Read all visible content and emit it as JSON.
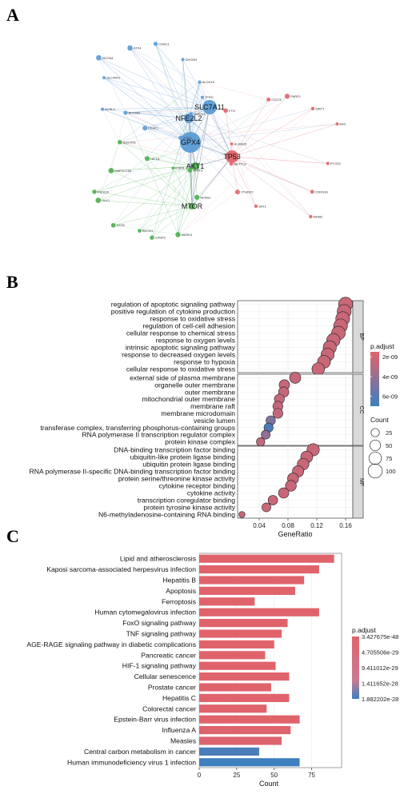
{
  "panels": {
    "a": "A",
    "b": "B",
    "c": "C"
  },
  "network": {
    "hubs": [
      {
        "label": "GPX4",
        "group": "blue",
        "size": 13
      },
      {
        "label": "SLC7A11",
        "group": "blue",
        "size": 9
      },
      {
        "label": "NFE2L2",
        "group": "blue",
        "size": 6
      },
      {
        "label": "TP53",
        "group": "red",
        "size": 8
      },
      {
        "label": "AKT1",
        "group": "green",
        "size": 5
      },
      {
        "label": "MTOR",
        "group": "green",
        "size": 4
      }
    ],
    "nodes": [
      {
        "label": "TFRC",
        "group": "blue"
      },
      {
        "label": "HMOX1",
        "group": "blue"
      },
      {
        "label": "FTH1",
        "group": "blue"
      },
      {
        "label": "KEAP1",
        "group": "blue"
      },
      {
        "label": "SLC3A2",
        "group": "blue"
      },
      {
        "label": "ACSL4",
        "group": "blue"
      },
      {
        "label": "SLC40A1",
        "group": "blue"
      },
      {
        "label": "NCOA4",
        "group": "blue"
      },
      {
        "label": "ATF4",
        "group": "blue"
      },
      {
        "label": "CHAC1",
        "group": "blue"
      },
      {
        "label": "DHODH",
        "group": "blue"
      },
      {
        "label": "ALOX15",
        "group": "blue"
      },
      {
        "label": "PTGS2",
        "group": "red"
      },
      {
        "label": "CDKN1A",
        "group": "red"
      },
      {
        "label": "MDM2",
        "group": "red"
      },
      {
        "label": "SAT1",
        "group": "red"
      },
      {
        "label": "YTHDF2",
        "group": "red"
      },
      {
        "label": "METTL3",
        "group": "red"
      },
      {
        "label": "ALKBH5",
        "group": "red"
      },
      {
        "label": "FTO",
        "group": "red"
      },
      {
        "label": "CD274",
        "group": "red"
      },
      {
        "label": "PARP1",
        "group": "red"
      },
      {
        "label": "SIRT1",
        "group": "red"
      },
      {
        "label": "BAX",
        "group": "red"
      },
      {
        "label": "NFKB1",
        "group": "green"
      },
      {
        "label": "MAPK3",
        "group": "green"
      },
      {
        "label": "CASP3",
        "group": "green"
      },
      {
        "label": "BECN1",
        "group": "green"
      },
      {
        "label": "ATG5",
        "group": "green"
      },
      {
        "label": "ULK1",
        "group": "green"
      },
      {
        "label": "PIK3CA",
        "group": "green"
      },
      {
        "label": "MAP1LC3A",
        "group": "green"
      },
      {
        "label": "SQSTM1",
        "group": "green"
      },
      {
        "label": "HIF1A",
        "group": "green"
      },
      {
        "label": "EGFR",
        "group": "green"
      },
      {
        "label": "STAT3",
        "group": "green"
      }
    ]
  },
  "chart_data": [
    {
      "type": "scatter",
      "panel": "B",
      "xlabel": "GeneRatio",
      "xticks": [
        0.04,
        0.08,
        0.12,
        0.16
      ],
      "xlim": [
        0.01,
        0.17
      ],
      "facets": [
        {
          "name": "BP",
          "points": [
            {
              "term": "regulation of apoptotic signaling pathway",
              "x": 0.16,
              "count": 100,
              "p": 2.3e-09
            },
            {
              "term": "positive regulation of cytokine production",
              "x": 0.158,
              "count": 98,
              "p": 2.3e-09
            },
            {
              "term": "response to oxidative stress",
              "x": 0.156,
              "count": 97,
              "p": 2.3e-09
            },
            {
              "term": "regulation of cell-cell adhesion",
              "x": 0.153,
              "count": 95,
              "p": 2.3e-09
            },
            {
              "term": "cellular response to chemical stress",
              "x": 0.15,
              "count": 93,
              "p": 2.3e-09
            },
            {
              "term": "response to oxygen levels",
              "x": 0.143,
              "count": 89,
              "p": 2.3e-09
            },
            {
              "term": "intrinsic apoptotic signaling pathway",
              "x": 0.138,
              "count": 86,
              "p": 2.3e-09
            },
            {
              "term": "response to decreased oxygen levels",
              "x": 0.135,
              "count": 84,
              "p": 2.3e-09
            },
            {
              "term": "response to hypoxia",
              "x": 0.13,
              "count": 81,
              "p": 2.3e-09
            },
            {
              "term": "cellular response to oxidative stress",
              "x": 0.122,
              "count": 76,
              "p": 2.3e-09
            }
          ]
        },
        {
          "name": "CC",
          "points": [
            {
              "term": "external side of plasma membrane",
              "x": 0.09,
              "count": 56,
              "p": 2.4e-09
            },
            {
              "term": "organelle outer membrane",
              "x": 0.075,
              "count": 47,
              "p": 2.4e-09
            },
            {
              "term": "outer membrane",
              "x": 0.074,
              "count": 46,
              "p": 2.4e-09
            },
            {
              "term": "mitochondrial outer membrane",
              "x": 0.068,
              "count": 42,
              "p": 2.5e-09
            },
            {
              "term": "membrane raft",
              "x": 0.066,
              "count": 41,
              "p": 2.5e-09
            },
            {
              "term": "membrane microdomain",
              "x": 0.066,
              "count": 41,
              "p": 2.5e-09
            },
            {
              "term": "vesicle lumen",
              "x": 0.056,
              "count": 35,
              "p": 4.8e-09
            },
            {
              "term": "transferase complex, transferring phosphorus-containing groups",
              "x": 0.053,
              "count": 33,
              "p": 6.5e-09
            },
            {
              "term": "RNA polymerase II transcription regulator complex",
              "x": 0.049,
              "count": 30,
              "p": 4.2e-09
            },
            {
              "term": "protein kinase complex",
              "x": 0.042,
              "count": 26,
              "p": 2.5e-09
            }
          ]
        },
        {
          "name": "MF",
          "points": [
            {
              "term": "DNA-binding transcription factor binding",
              "x": 0.115,
              "count": 72,
              "p": 2.3e-09
            },
            {
              "term": "ubiquitin-like protein ligase binding",
              "x": 0.106,
              "count": 66,
              "p": 2.3e-09
            },
            {
              "term": "ubiquitin protein ligase binding",
              "x": 0.101,
              "count": 63,
              "p": 2.3e-09
            },
            {
              "term": "RNA polymerase II-specific DNA-binding transcription factor binding",
              "x": 0.094,
              "count": 58,
              "p": 2.3e-09
            },
            {
              "term": "protein serine/threonine kinase activity",
              "x": 0.087,
              "count": 54,
              "p": 2.3e-09
            },
            {
              "term": "cytokine receptor binding",
              "x": 0.084,
              "count": 52,
              "p": 2.3e-09
            },
            {
              "term": "cytokine activity",
              "x": 0.074,
              "count": 46,
              "p": 2.3e-09
            },
            {
              "term": "transcription coregulator binding",
              "x": 0.059,
              "count": 37,
              "p": 2.3e-09
            },
            {
              "term": "protein tyrosine kinase activity",
              "x": 0.05,
              "count": 31,
              "p": 2.3e-09
            },
            {
              "term": "N6-methyladenosine-containing RNA binding",
              "x": 0.016,
              "count": 10,
              "p": 2.3e-09
            }
          ]
        }
      ],
      "color_legend": {
        "title": "p.adjust",
        "labels": [
          "2e-09",
          "4e-09",
          "6e-09"
        ],
        "range": [
          1.5e-09,
          7e-09
        ],
        "colors": [
          "#e0636b",
          "#3d7fbf"
        ]
      },
      "size_legend": {
        "title": "Count",
        "labels": [
          "25",
          "50",
          "75",
          "100"
        ],
        "values": [
          25,
          50,
          75,
          100
        ]
      }
    },
    {
      "type": "bar",
      "panel": "C",
      "orientation": "horizontal",
      "xlabel": "Count",
      "xticks": [
        0,
        25,
        50,
        75
      ],
      "xlim": [
        0,
        95
      ],
      "categories": [
        "Lipid and atherosclerosis",
        "Kaposi sarcoma-associated herpesvirus infection",
        "Hepatitis B",
        "Apoptosis",
        "Ferroptosis",
        "Human cytomegalovirus infection",
        "FoxO signaling pathway",
        "TNF signaling pathway",
        "AGE-RAGE signaling pathway in diabetic complications",
        "Pancreatic cancer",
        "HIF-1 signaling pathway",
        "Cellular senescence",
        "Prostate cancer",
        "Hepatitis C",
        "Colorectal cancer",
        "Epstein-Barr virus infection",
        "Influenza A",
        "Measles",
        "Central carbon metabolism in cancer",
        "Human immunodeficiency virus 1 infection"
      ],
      "values": [
        90,
        80,
        70,
        64,
        37,
        80,
        59,
        55,
        50,
        44,
        51,
        60,
        48,
        60,
        45,
        67,
        61,
        55,
        40,
        67
      ],
      "p": [
        3.43e-48,
        3e-47,
        3e-46,
        3e-46,
        3e-46,
        5e-46,
        5e-46,
        5e-46,
        5e-46,
        5e-46,
        5e-46,
        5e-46,
        1e-45,
        1e-45,
        1e-45,
        2e-45,
        3e-43,
        8e-42,
        5e-29,
        1.88e-28
      ],
      "color_legend": {
        "title": "p.adjust",
        "labels": [
          "3.427675e-48",
          "4.705506e-29",
          "9.411012e-29",
          "1.411652e-28",
          "1.882202e-28"
        ],
        "colors": [
          "#e0636b",
          "#3d7fbf"
        ]
      }
    }
  ]
}
